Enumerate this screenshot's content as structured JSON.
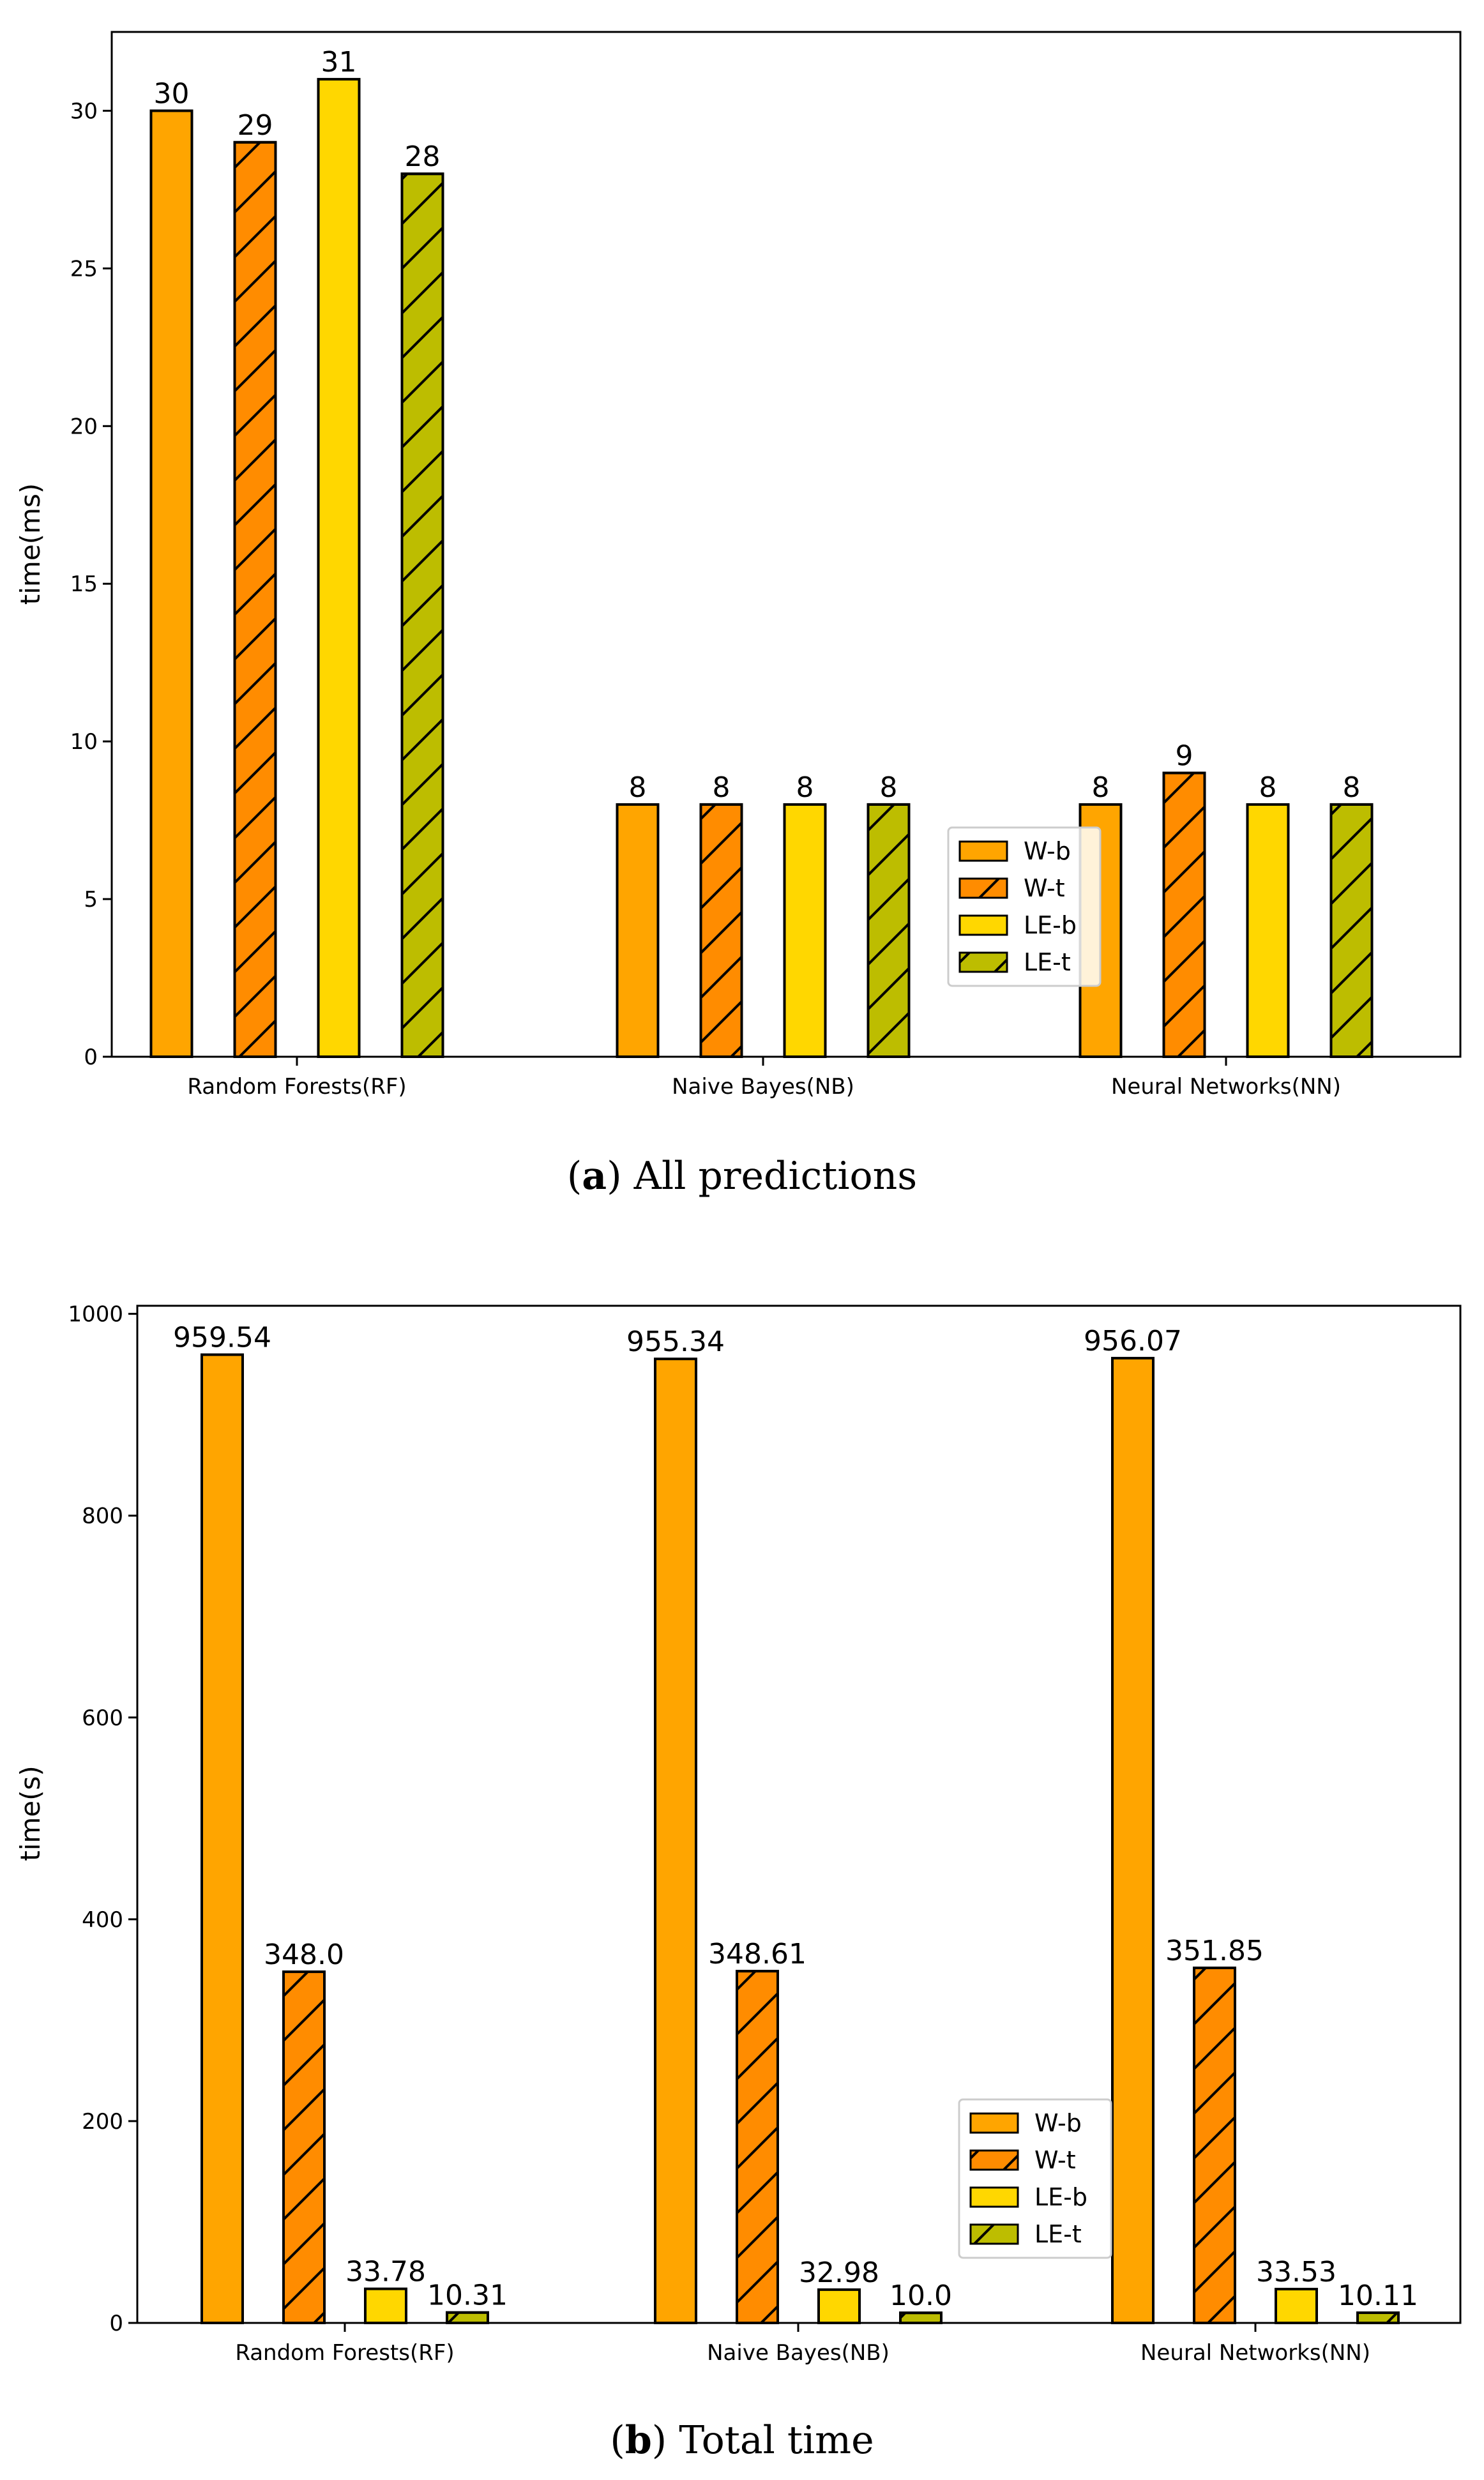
{
  "colors": {
    "W-b": "#FFA500",
    "W-t": "#FF8C00",
    "LE-b": "#FFD700",
    "LE-t": "#BDBD00",
    "edge": "#000000"
  },
  "chart_data": [
    {
      "id": "a",
      "type": "bar",
      "title": "",
      "caption_letter": "a",
      "caption_text": "All predictions",
      "xlabel": "",
      "ylabel": "time(ms)",
      "ylim": [
        0,
        32.5
      ],
      "yticks": [
        0,
        5,
        10,
        15,
        20,
        25,
        30
      ],
      "grid": false,
      "legend_position": "center-right",
      "categories": [
        "Random Forests(RF)",
        "Naive Bayes(NB)",
        "Neural Networks(NN)"
      ],
      "series": [
        {
          "name": "W-b",
          "hatch": false,
          "values": [
            30,
            8,
            8
          ],
          "labels": [
            "30",
            "8",
            "8"
          ]
        },
        {
          "name": "W-t",
          "hatch": true,
          "values": [
            29,
            8,
            9
          ],
          "labels": [
            "29",
            "8",
            "9"
          ]
        },
        {
          "name": "LE-b",
          "hatch": false,
          "values": [
            31,
            8,
            8
          ],
          "labels": [
            "31",
            "8",
            "8"
          ]
        },
        {
          "name": "LE-t",
          "hatch": true,
          "values": [
            28,
            8,
            8
          ],
          "labels": [
            "28",
            "8",
            "8"
          ]
        }
      ]
    },
    {
      "id": "b",
      "type": "bar",
      "title": "",
      "caption_letter": "b",
      "caption_text": "Total time",
      "xlabel": "",
      "ylabel": "time(s)",
      "ylim": [
        0,
        1008
      ],
      "yticks": [
        0,
        200,
        400,
        600,
        800,
        1000
      ],
      "grid": false,
      "legend_position": "lower-right",
      "categories": [
        "Random Forests(RF)",
        "Naive Bayes(NB)",
        "Neural Networks(NN)"
      ],
      "series": [
        {
          "name": "W-b",
          "hatch": false,
          "values": [
            959.54,
            955.34,
            956.07
          ],
          "labels": [
            "959.54",
            "955.34",
            "956.07"
          ]
        },
        {
          "name": "W-t",
          "hatch": true,
          "values": [
            348.0,
            348.61,
            351.85
          ],
          "labels": [
            "348.0",
            "348.61",
            "351.85"
          ]
        },
        {
          "name": "LE-b",
          "hatch": false,
          "values": [
            33.78,
            32.98,
            33.53
          ],
          "labels": [
            "33.78",
            "32.98",
            "33.53"
          ]
        },
        {
          "name": "LE-t",
          "hatch": true,
          "values": [
            10.31,
            10.0,
            10.11
          ],
          "labels": [
            "10.31",
            "10.0",
            "10.11"
          ]
        }
      ]
    }
  ]
}
